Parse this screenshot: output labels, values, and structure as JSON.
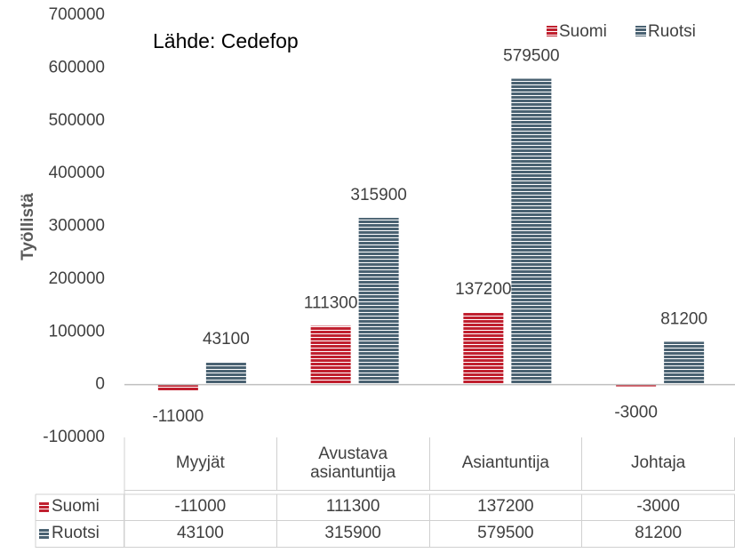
{
  "chart_data": {
    "type": "bar",
    "annotation": "Lähde: Cedefop",
    "y_label": "Työllistä",
    "categories": [
      "Myyjät",
      "Avustava asiantuntija",
      "Asiantuntija",
      "Johtaja"
    ],
    "series": [
      {
        "name": "Suomi",
        "color": "#c0202f",
        "values": [
          -11000,
          111300,
          137200,
          -3000
        ]
      },
      {
        "name": "Ruotsi",
        "color": "#4a6272",
        "values": [
          43100,
          315900,
          579500,
          81200
        ]
      }
    ],
    "ylim": [
      -100000,
      700000
    ],
    "yticks": [
      -100000,
      0,
      100000,
      200000,
      300000,
      400000,
      500000,
      600000,
      700000
    ],
    "legend": "top-right",
    "data_table": true
  }
}
